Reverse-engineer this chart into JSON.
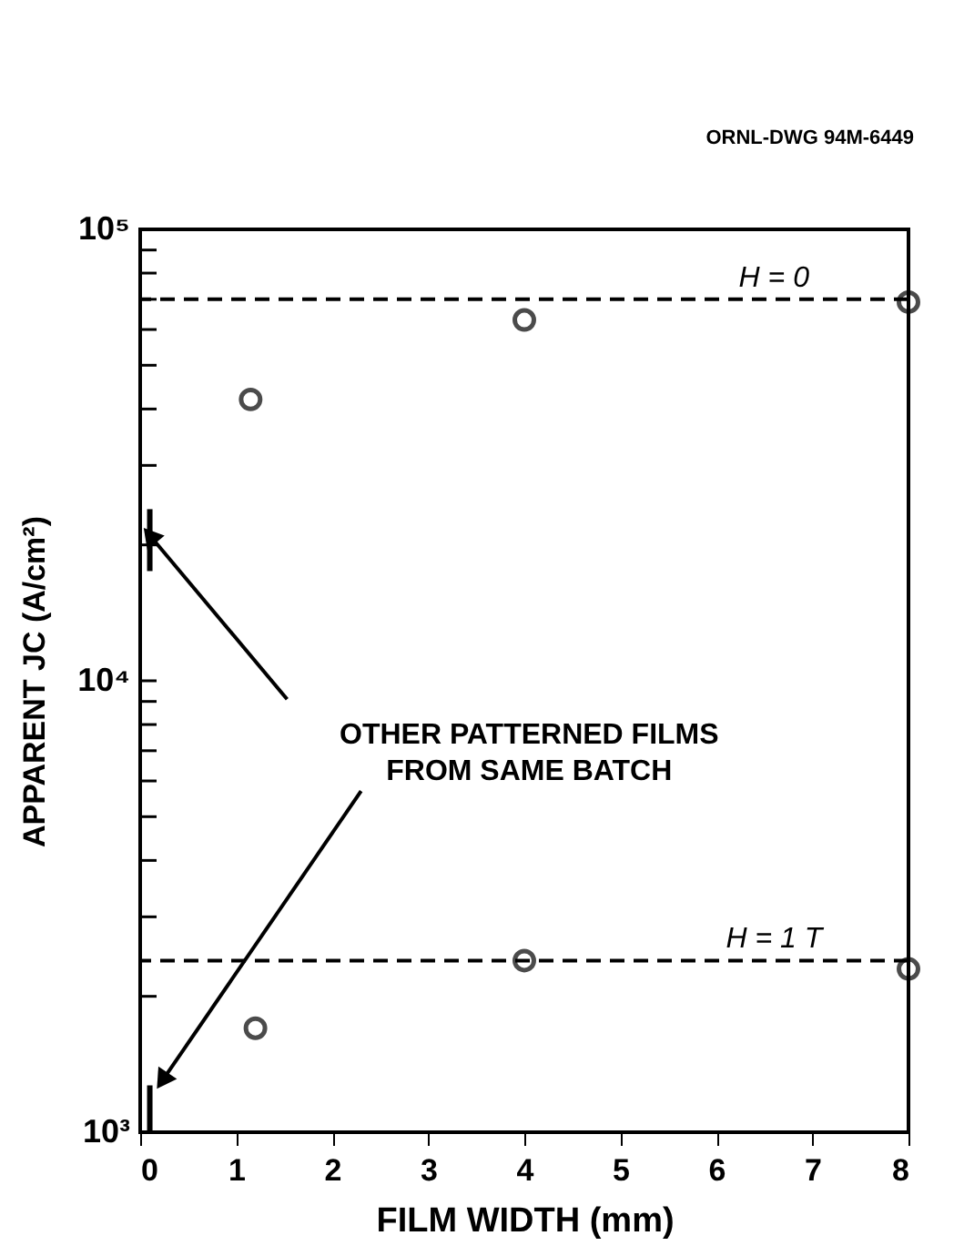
{
  "chart_data": {
    "type": "scatter",
    "xlabel": "FILM WIDTH (mm)",
    "ylabel": "APPARENT JC (A/cm²)",
    "log": "y",
    "marker": "circle",
    "grid": false,
    "xlim": [
      0,
      8
    ],
    "xticks": [
      0,
      1,
      2,
      3,
      4,
      5,
      6,
      7,
      8
    ],
    "ylim": [
      1000,
      100000
    ],
    "yticks": [
      {
        "value": 1000,
        "label": "10³"
      },
      {
        "value": 2000,
        "label": null
      },
      {
        "value": 3000,
        "label": null
      },
      {
        "value": 4000,
        "label": null
      },
      {
        "value": 5000,
        "label": null
      },
      {
        "value": 6000,
        "label": null
      },
      {
        "value": 7000,
        "label": null
      },
      {
        "value": 8000,
        "label": null
      },
      {
        "value": 9000,
        "label": null
      },
      {
        "value": 10000,
        "label": "10⁴"
      },
      {
        "value": 20000,
        "label": null
      },
      {
        "value": 30000,
        "label": null
      },
      {
        "value": 40000,
        "label": null
      },
      {
        "value": 50000,
        "label": null
      },
      {
        "value": 60000,
        "label": null
      },
      {
        "value": 70000,
        "label": null
      },
      {
        "value": 80000,
        "label": null
      },
      {
        "value": 90000,
        "label": null
      },
      {
        "value": 100000,
        "label": "10⁵"
      }
    ],
    "series": [
      {
        "color": "#000000",
        "x": [
          1.15,
          4,
          8
        ],
        "values": [
          42000,
          63000,
          69000
        ]
      },
      {
        "color": "#000000",
        "x": [
          1.2,
          4,
          8
        ],
        "values": [
          1700,
          2400,
          2300
        ]
      },
      {
        "type": "bar",
        "color": "#000000",
        "x": [
          0.1,
          0.1
        ],
        "base": [
          17500,
          1000
        ],
        "values": [
          6500,
          270
        ]
      }
    ],
    "ref_lines": [
      {
        "axis": "y",
        "value": 70000,
        "line_style": "dashed",
        "color": "#000000"
      },
      {
        "axis": "y",
        "value": 2400,
        "line_style": "dashed",
        "color": "#000000"
      }
    ],
    "annotations": [
      "ORNL-DWG 94M-6449",
      "OTHER PATTERNED FILMS\nFROM SAME BATCH",
      {
        "text": "H = 0",
        "x": 6.6,
        "y": 70000
      },
      {
        "text": "H = 1 T",
        "x": 6.6,
        "y": 2400
      }
    ]
  }
}
